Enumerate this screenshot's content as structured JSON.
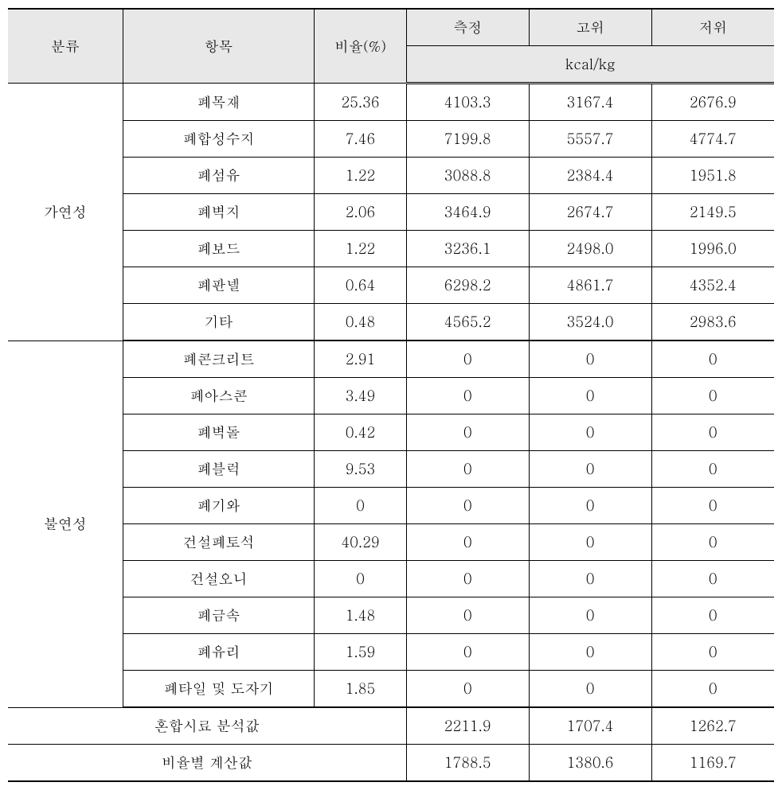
{
  "table": {
    "headers": {
      "category": "분류",
      "item": "항목",
      "ratio": "비율(%)",
      "measured": "측정",
      "high": "고위",
      "low": "저위",
      "unit": "kcal/kg"
    },
    "groups": [
      {
        "name": "가연성",
        "rows": [
          {
            "item": "폐목재",
            "ratio": "25.36",
            "measured": "4103.3",
            "high": "3167.4",
            "low": "2676.9"
          },
          {
            "item": "폐합성수지",
            "ratio": "7.46",
            "measured": "7199.8",
            "high": "5557.7",
            "low": "4774.7"
          },
          {
            "item": "폐섬유",
            "ratio": "1.22",
            "measured": "3088.8",
            "high": "2384.4",
            "low": "1951.8"
          },
          {
            "item": "폐벽지",
            "ratio": "2.06",
            "measured": "3464.9",
            "high": "2674.7",
            "low": "2149.5"
          },
          {
            "item": "폐보드",
            "ratio": "1.22",
            "measured": "3236.1",
            "high": "2498.0",
            "low": "1996.0"
          },
          {
            "item": "폐판넬",
            "ratio": "0.64",
            "measured": "6298.2",
            "high": "4861.7",
            "low": "4352.4"
          },
          {
            "item": "기타",
            "ratio": "0.48",
            "measured": "4565.2",
            "high": "3524.0",
            "low": "2983.6"
          }
        ]
      },
      {
        "name": "불연성",
        "rows": [
          {
            "item": "폐콘크리트",
            "ratio": "2.91",
            "measured": "0",
            "high": "0",
            "low": "0"
          },
          {
            "item": "폐아스콘",
            "ratio": "3.49",
            "measured": "0",
            "high": "0",
            "low": "0"
          },
          {
            "item": "폐벽돌",
            "ratio": "0.42",
            "measured": "0",
            "high": "0",
            "low": "0"
          },
          {
            "item": "폐블럭",
            "ratio": "9.53",
            "measured": "0",
            "high": "0",
            "low": "0"
          },
          {
            "item": "폐기와",
            "ratio": "0",
            "measured": "0",
            "high": "0",
            "low": "0"
          },
          {
            "item": "건설폐토석",
            "ratio": "40.29",
            "measured": "0",
            "high": "0",
            "low": "0"
          },
          {
            "item": "건설오니",
            "ratio": "0",
            "measured": "0",
            "high": "0",
            "low": "0"
          },
          {
            "item": "폐금속",
            "ratio": "1.48",
            "measured": "0",
            "high": "0",
            "low": "0"
          },
          {
            "item": "폐유리",
            "ratio": "1.59",
            "measured": "0",
            "high": "0",
            "low": "0"
          },
          {
            "item": "폐타일 및 도자기",
            "ratio": "1.85",
            "measured": "0",
            "high": "0",
            "low": "0"
          }
        ]
      }
    ],
    "summary": [
      {
        "label": "혼합시료 분석값",
        "measured": "2211.9",
        "high": "1707.4",
        "low": "1262.7"
      },
      {
        "label": "비율별 계산값",
        "measured": "1788.5",
        "high": "1380.6",
        "low": "1169.7"
      }
    ],
    "column_widths": [
      "15%",
      "25%",
      "12%",
      "16%",
      "16%",
      "16%"
    ]
  }
}
